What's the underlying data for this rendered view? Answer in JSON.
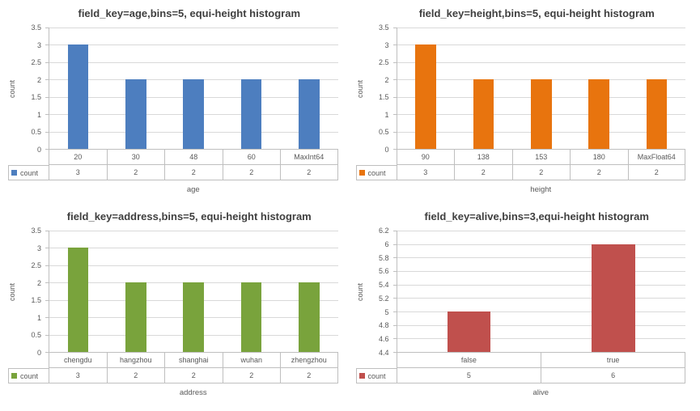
{
  "style": {
    "background": "#FFFFFF",
    "title_color": "#3F3F3F",
    "axis_text_color": "#595959",
    "gridline_color": "#D9D9D9",
    "axis_line_color": "#BFBFBF",
    "table_border_color": "#BFBFBF"
  },
  "chart_data": [
    {
      "type": "bar",
      "title": "field_key=age,bins=5, equi-height histogram",
      "xlabel": "age",
      "ylabel": "count",
      "series_name": "count",
      "color": "#4D7EBF",
      "categories": [
        "20",
        "30",
        "48",
        "60",
        "MaxInt64"
      ],
      "values": [
        3,
        2,
        2,
        2,
        2
      ],
      "ylim": [
        0,
        3.5
      ],
      "ytick_step": 0.5,
      "grid": true,
      "data_table": true,
      "legend_position": "table-left"
    },
    {
      "type": "bar",
      "title": "field_key=height,bins=5, equi-height histogram",
      "xlabel": "height",
      "ylabel": "count",
      "series_name": "count",
      "color": "#E8740E",
      "categories": [
        "90",
        "138",
        "153",
        "180",
        "MaxFloat64"
      ],
      "values": [
        3,
        2,
        2,
        2,
        2
      ],
      "ylim": [
        0,
        3.5
      ],
      "ytick_step": 0.5,
      "grid": true,
      "data_table": true,
      "legend_position": "table-left"
    },
    {
      "type": "bar",
      "title": "field_key=address,bins=5, equi-height histogram",
      "xlabel": "address",
      "ylabel": "count",
      "series_name": "count",
      "color": "#79A33C",
      "categories": [
        "chengdu",
        "hangzhou",
        "shanghai",
        "wuhan",
        "zhengzhou"
      ],
      "values": [
        3,
        2,
        2,
        2,
        2
      ],
      "ylim": [
        0,
        3.5
      ],
      "ytick_step": 0.5,
      "grid": true,
      "data_table": true,
      "legend_position": "table-left"
    },
    {
      "type": "bar",
      "title": "field_key=alive,bins=3,equi-height histogram",
      "xlabel": "alive",
      "ylabel": "count",
      "series_name": "count",
      "color": "#C0504D",
      "categories": [
        "false",
        "true"
      ],
      "values": [
        5,
        6
      ],
      "ylim": [
        4.4,
        6.2
      ],
      "ytick_step": 0.2,
      "grid": true,
      "data_table": true,
      "legend_position": "table-left"
    }
  ]
}
